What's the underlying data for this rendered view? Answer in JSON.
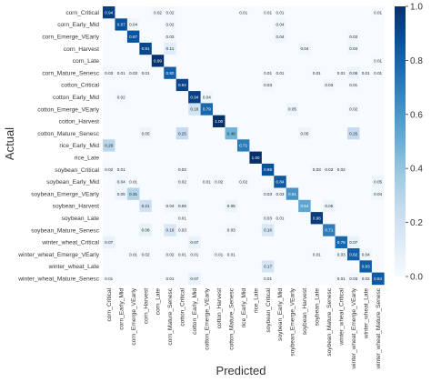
{
  "chart_data": {
    "type": "heatmap",
    "xlabel": "Predicted",
    "ylabel": "Actual",
    "labels": [
      "corn_Critical",
      "corn_Early_Mid",
      "corn_Emerge_VEarly",
      "corn_Harvest",
      "corn_Late",
      "corn_Mature_Senesc",
      "cotton_Critical",
      "cotton_Early_Mid",
      "cotton_Emerge_VEarly",
      "cotton_Harvest",
      "cotton_Mature_Senesc",
      "rice_Early_Mid",
      "rice_Late",
      "soybean_Critical",
      "soybean_Early_Mid",
      "soybean_Emerge_VEarly",
      "soybean_Harvest",
      "soybean_Late",
      "soybean_Mature_Senesc",
      "winter_wheat_Critical",
      "winter_wheat_Emerge_VEarly",
      "winter_wheat_Late",
      "winter_wheat_Mature_Senesc"
    ],
    "matrix": [
      [
        0.94,
        0,
        0,
        0,
        0.02,
        0.02,
        0,
        0,
        0,
        0,
        0,
        0.01,
        0,
        0.01,
        0.01,
        0,
        0,
        0,
        0,
        0,
        0,
        0,
        0.01
      ],
      [
        0,
        0.87,
        0.04,
        0,
        0,
        0.02,
        0,
        0,
        0,
        0,
        0,
        0,
        0,
        0,
        0.04,
        0,
        0,
        0,
        0,
        0,
        0,
        0,
        0
      ],
      [
        0,
        0,
        0.87,
        0,
        0,
        0.03,
        0,
        0,
        0,
        0,
        0,
        0,
        0,
        0,
        0.04,
        0,
        0,
        0,
        0,
        0,
        0.03,
        0,
        0
      ],
      [
        0,
        0,
        0,
        0.91,
        0,
        0.11,
        0,
        0,
        0,
        0,
        0,
        0,
        0,
        0,
        0,
        0,
        0.04,
        0,
        0,
        0,
        0.04,
        0,
        0
      ],
      [
        0,
        0,
        0,
        0,
        0.99,
        0,
        0,
        0,
        0,
        0,
        0,
        0,
        0,
        0,
        0,
        0,
        0,
        0,
        0,
        0,
        0,
        0,
        0.01
      ],
      [
        0.03,
        0.01,
        0.03,
        0.01,
        0,
        0.82,
        0,
        0,
        0,
        0,
        0,
        0,
        0,
        0.01,
        0.01,
        0,
        0,
        0.01,
        0,
        0.01,
        0.06,
        0.01,
        0.01
      ],
      [
        0,
        0,
        0,
        0,
        0,
        0,
        0.92,
        0,
        0,
        0,
        0,
        0,
        0,
        0.03,
        0,
        0,
        0,
        0,
        0.03,
        0,
        0.01,
        0,
        0
      ],
      [
        0,
        0.02,
        0,
        0,
        0,
        0,
        0,
        0.94,
        0.04,
        0,
        0,
        0,
        0,
        0,
        0,
        0,
        0,
        0,
        0,
        0,
        0,
        0,
        0
      ],
      [
        0,
        0,
        0,
        0,
        0,
        0,
        0,
        0.18,
        0.79,
        0,
        0,
        0,
        0,
        0,
        0,
        0.05,
        0,
        0,
        0,
        0,
        0.02,
        0,
        0
      ],
      [
        0,
        0,
        0,
        0,
        0,
        0,
        0,
        0,
        0,
        1.0,
        0,
        0,
        0,
        0,
        0,
        0,
        0,
        0,
        0,
        0,
        0,
        0,
        0
      ],
      [
        0,
        0,
        0,
        0.05,
        0,
        0,
        0.25,
        0,
        0,
        0,
        0.48,
        0,
        0,
        0,
        0,
        0,
        0.05,
        0,
        0,
        0,
        0.25,
        0,
        0
      ],
      [
        0.29,
        0,
        0,
        0,
        0,
        0,
        0,
        0,
        0,
        0,
        0,
        0.71,
        0,
        0,
        0,
        0,
        0,
        0,
        0,
        0,
        0,
        0,
        0
      ],
      [
        0,
        0,
        0,
        0,
        0,
        0,
        0,
        0,
        0,
        0,
        0,
        0,
        1.0,
        0,
        0,
        0,
        0,
        0,
        0,
        0,
        0,
        0,
        0
      ],
      [
        0.02,
        0.01,
        0,
        0,
        0,
        0,
        0.02,
        0,
        0,
        0,
        0,
        0,
        0,
        0.88,
        0,
        0,
        0,
        0.03,
        0.03,
        0.02,
        0,
        0,
        0
      ],
      [
        0,
        0.04,
        0.01,
        0,
        0,
        0,
        0.02,
        0,
        0.01,
        0.02,
        0,
        0.02,
        0,
        0,
        0.84,
        0,
        0,
        0,
        0,
        0,
        0,
        0,
        0.05
      ],
      [
        0,
        0.05,
        0.31,
        0,
        0,
        0,
        0,
        0,
        0,
        0,
        0,
        0,
        0,
        0.03,
        0.03,
        0.61,
        0,
        0,
        0,
        0,
        0,
        0,
        0.04
      ],
      [
        0,
        0,
        0,
        0.21,
        0,
        0.04,
        0.06,
        0,
        0,
        0,
        0.05,
        0,
        0,
        0,
        0,
        0,
        0.54,
        0,
        0.05,
        0,
        0,
        0,
        0
      ],
      [
        0,
        0,
        0,
        0,
        0,
        0,
        0.01,
        0,
        0,
        0,
        0,
        0,
        0,
        0.03,
        0.01,
        0,
        0,
        0.96,
        0,
        0,
        0,
        0,
        0
      ],
      [
        0,
        0,
        0,
        0.08,
        0,
        0.16,
        0.03,
        0,
        0,
        0,
        0.03,
        0,
        0,
        0.16,
        0,
        0,
        0,
        0,
        0.71,
        0,
        0,
        0,
        0
      ],
      [
        0.07,
        0,
        0,
        0,
        0,
        0,
        0,
        0.07,
        0,
        0,
        0,
        0,
        0,
        0,
        0,
        0,
        0,
        0,
        0,
        0.79,
        0.07,
        0,
        0
      ],
      [
        0,
        0,
        0.01,
        0.02,
        0,
        0.02,
        0.01,
        0.01,
        0,
        0.01,
        0.01,
        0,
        0,
        0,
        0,
        0,
        0,
        0.01,
        0,
        0.03,
        0.82,
        0.04,
        0
      ],
      [
        0,
        0,
        0,
        0,
        0,
        0,
        0,
        0,
        0,
        0,
        0,
        0,
        0,
        0.17,
        0,
        0,
        0,
        0,
        0,
        0,
        0,
        0.83,
        0
      ],
      [
        0.01,
        0,
        0,
        0,
        0,
        0.01,
        0,
        0.07,
        0,
        0,
        0,
        0,
        0,
        0.01,
        0,
        0,
        0,
        0,
        0,
        0.01,
        0.03,
        0.02,
        0.84
      ]
    ],
    "vmin": 0,
    "vmax": 1,
    "colorbar_ticks": [
      "0.0",
      "0.2",
      "0.4",
      "0.6",
      "0.8",
      "1.0"
    ],
    "colormap": {
      "low": "#f7fbff",
      "high": "#08306b"
    },
    "grid": false,
    "legend": "colorbar-right"
  }
}
